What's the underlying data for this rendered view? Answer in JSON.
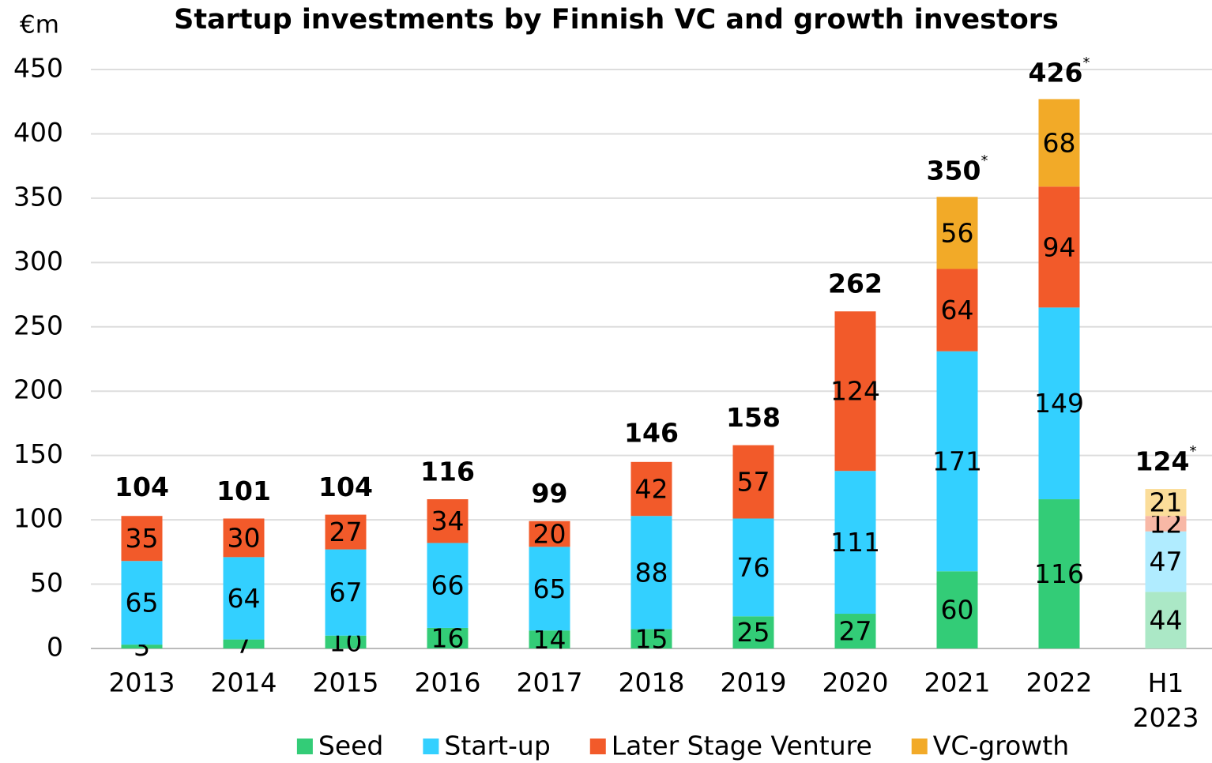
{
  "chart_data": {
    "type": "stacked_bar",
    "title": "Startup investments by Finnish VC and growth investors",
    "y_unit": "€m",
    "categories": [
      "2013",
      "2014",
      "2015",
      "2016",
      "2017",
      "2018",
      "2019",
      "2020",
      "2021",
      "2022",
      "H1 2023"
    ],
    "series": [
      {
        "name": "Seed",
        "color": "#33cc77",
        "faded_color": "#abe8c6",
        "values": [
          3,
          7,
          10,
          16,
          14,
          15,
          25,
          27,
          60,
          116,
          44
        ]
      },
      {
        "name": "Start-up",
        "color": "#33d0ff",
        "faded_color": "#b0ecff",
        "values": [
          65,
          64,
          67,
          66,
          65,
          88,
          76,
          111,
          171,
          149,
          47
        ]
      },
      {
        "name": "Later Stage Venture",
        "color": "#f25a2a",
        "faded_color": "#f8b8a6",
        "values": [
          35,
          30,
          27,
          34,
          20,
          42,
          57,
          124,
          64,
          94,
          12
        ]
      },
      {
        "name": "VC-growth",
        "color": "#f2aa28",
        "faded_color": "#fbdd9a",
        "values": [
          null,
          null,
          null,
          null,
          null,
          null,
          null,
          null,
          56,
          68,
          21
        ]
      }
    ],
    "totals": [
      104,
      101,
      104,
      116,
      99,
      146,
      158,
      262,
      350,
      426,
      124
    ],
    "total_marks": [
      null,
      null,
      null,
      null,
      null,
      null,
      null,
      null,
      "*",
      "*",
      "*"
    ],
    "faded_category": 10,
    "ylim": [
      0,
      450
    ],
    "yticks": [
      0,
      50,
      100,
      150,
      200,
      250,
      300,
      350,
      400,
      450
    ],
    "grid": true,
    "legend": "bottom"
  }
}
